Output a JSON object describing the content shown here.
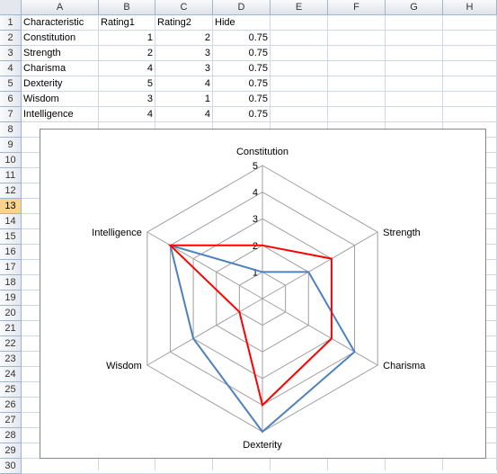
{
  "columns": [
    "A",
    "B",
    "C",
    "D",
    "E",
    "F",
    "G",
    "H"
  ],
  "rows": [
    "1",
    "2",
    "3",
    "4",
    "5",
    "6",
    "7",
    "8",
    "9",
    "10",
    "11",
    "12",
    "13",
    "14",
    "15",
    "16",
    "17",
    "18",
    "19",
    "20",
    "21",
    "22",
    "23",
    "24",
    "25",
    "26",
    "27",
    "28",
    "29",
    "30"
  ],
  "selected_row": "13",
  "table": {
    "headers": [
      "Characteristic",
      "Rating1",
      "Rating2",
      "Hide"
    ],
    "body": [
      [
        "Constitution",
        "1",
        "2",
        "0.75"
      ],
      [
        "Strength",
        "2",
        "3",
        "0.75"
      ],
      [
        "Charisma",
        "4",
        "3",
        "0.75"
      ],
      [
        "Dexterity",
        "5",
        "4",
        "0.75"
      ],
      [
        "Wisdom",
        "3",
        "1",
        "0.75"
      ],
      [
        "Intelligence",
        "4",
        "4",
        "0.75"
      ]
    ]
  },
  "chart_data": {
    "type": "radar",
    "categories": [
      "Constitution",
      "Strength",
      "Charisma",
      "Dexterity",
      "Wisdom",
      "Intelligence"
    ],
    "series": [
      {
        "values": [
          1,
          2,
          4,
          5,
          3,
          4
        ],
        "color": "#4f81bd"
      },
      {
        "values": [
          2,
          3,
          3,
          4,
          1,
          4
        ],
        "color": "#ff0000"
      }
    ],
    "rlim": [
      0,
      5
    ],
    "tick_labels": [
      "1",
      "2",
      "3",
      "4",
      "5"
    ],
    "grid_color": "#a0a0a0",
    "legend": "none"
  }
}
